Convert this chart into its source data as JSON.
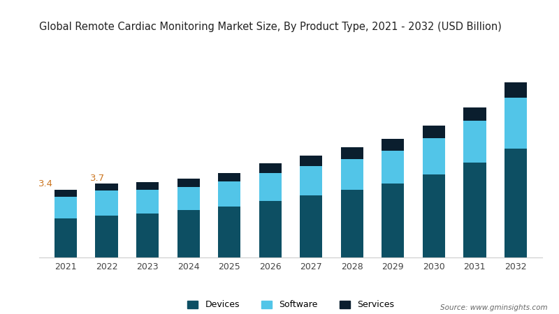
{
  "years": [
    2021,
    2022,
    2023,
    2024,
    2025,
    2026,
    2027,
    2028,
    2029,
    2030,
    2031,
    2032
  ],
  "devices": [
    1.95,
    2.1,
    2.2,
    2.38,
    2.55,
    2.85,
    3.1,
    3.4,
    3.72,
    4.15,
    4.75,
    5.45
  ],
  "software": [
    1.1,
    1.25,
    1.2,
    1.15,
    1.25,
    1.4,
    1.5,
    1.55,
    1.65,
    1.85,
    2.1,
    2.55
  ],
  "services": [
    0.35,
    0.35,
    0.38,
    0.42,
    0.42,
    0.48,
    0.52,
    0.57,
    0.58,
    0.62,
    0.68,
    0.78
  ],
  "devices_color": "#0d4f63",
  "software_color": "#52c5e8",
  "services_color": "#0a1e2e",
  "title": "Global Remote Cardiac Monitoring Market Size, By Product Type, 2021 - 2032 (USD Billion)",
  "title_fontsize": 10.5,
  "annotation_2021": "3.4",
  "annotation_2022": "3.7",
  "legend_labels": [
    "Devices",
    "Software",
    "Services"
  ],
  "source_text": "Source: www.gminsights.com",
  "background_color": "#ffffff",
  "bar_width": 0.55
}
